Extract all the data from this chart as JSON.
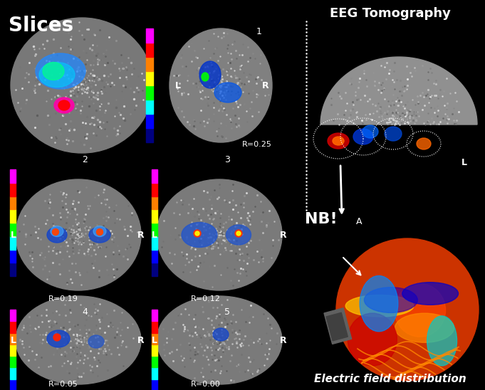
{
  "background_color": "#000000",
  "title_left": "Slices",
  "title_right_top": "EEG Tomography",
  "title_right_bottom": "Electric field distribution",
  "label_nb": "NB!",
  "label_a": "A",
  "label_l_top": "L",
  "slices": [
    {
      "num": "1",
      "r_label": "R=0.25"
    },
    {
      "num": "2",
      "r_label": "R=0.19"
    },
    {
      "num": "3",
      "r_label": "R=0.12"
    },
    {
      "num": "4",
      "r_label": "R=0.05"
    },
    {
      "num": "5",
      "r_label": "R=0.00"
    }
  ],
  "colorbar_colors": [
    "#ff00ff",
    "#ff0000",
    "#ff8000",
    "#ffff00",
    "#80ff00",
    "#00ff00",
    "#00ffff",
    "#0000ff",
    "#000080"
  ],
  "brain_slice_bg": "#808080",
  "eeg_tomo_bg": "#909090",
  "electric_field_bg": "#cc6600",
  "hot_spot_colors": [
    "#ff0000",
    "#ff8000",
    "#0000ff",
    "#00ffff"
  ],
  "arrow_color": "#ffffff",
  "figsize": [
    6.81,
    5.48
  ],
  "dpi": 100
}
